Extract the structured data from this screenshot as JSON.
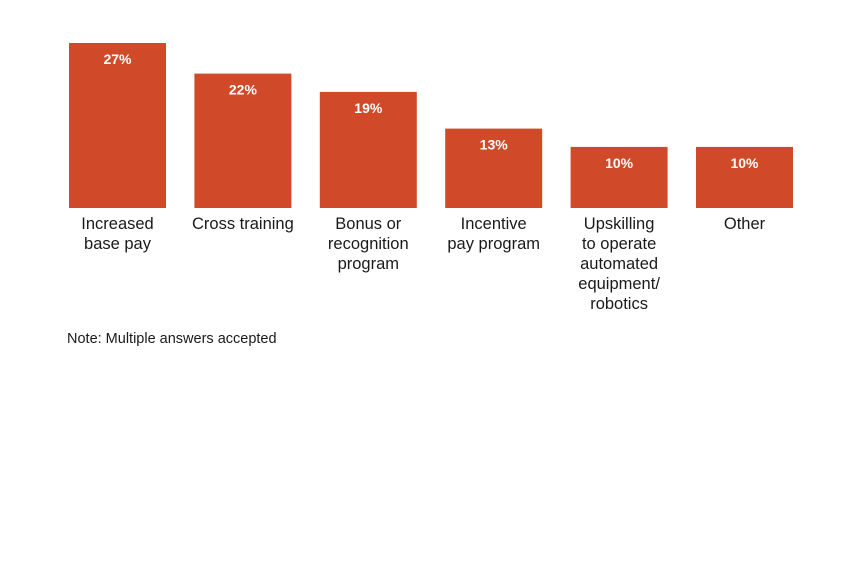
{
  "chart_data": {
    "type": "bar",
    "categories": [
      "Increased\nbase pay",
      "Cross training",
      "Bonus or\nrecognition\nprogram",
      "Incentive\npay program",
      "Upskilling\nto operate\nautomated\nequipment/\nrobotics",
      "Other"
    ],
    "values": [
      27,
      22,
      19,
      13,
      10,
      10
    ],
    "data_labels": [
      "27%",
      "22%",
      "19%",
      "13%",
      "10%",
      "10%"
    ],
    "ylim": [
      0,
      27
    ],
    "grid": false,
    "bar_color": "#d04a29",
    "label_color": "#ffffff"
  },
  "note": "Note: Multiple answers accepted"
}
